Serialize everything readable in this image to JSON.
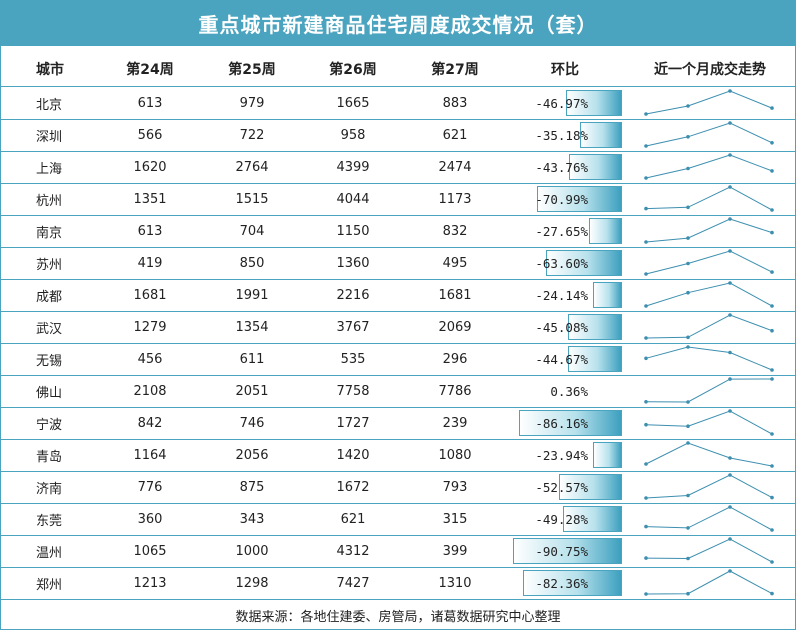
{
  "title": "重点城市新建商品住宅周度成交情况（套）",
  "footer": "数据来源：各地住建委、房管局，诸葛数据研究中心整理",
  "colors": {
    "accent": "#4aa3bf",
    "line": "#3d8fb0"
  },
  "chart_data": {
    "type": "table",
    "columns": [
      "城市",
      "第24周",
      "第25周",
      "第26周",
      "第27周",
      "环比",
      "近一个月成交走势"
    ],
    "rows": [
      {
        "city": "北京",
        "values": [
          613,
          979,
          1665,
          883
        ],
        "change": "-46.97%",
        "change_value": -46.97
      },
      {
        "city": "深圳",
        "values": [
          566,
          722,
          958,
          621
        ],
        "change": "-35.18%",
        "change_value": -35.18
      },
      {
        "city": "上海",
        "values": [
          1620,
          2764,
          4399,
          2474
        ],
        "change": "-43.76%",
        "change_value": -43.76
      },
      {
        "city": "杭州",
        "values": [
          1351,
          1515,
          4044,
          1173
        ],
        "change": "-70.99%",
        "change_value": -70.99
      },
      {
        "city": "南京",
        "values": [
          613,
          704,
          1150,
          832
        ],
        "change": "-27.65%",
        "change_value": -27.65
      },
      {
        "city": "苏州",
        "values": [
          419,
          850,
          1360,
          495
        ],
        "change": "-63.60%",
        "change_value": -63.6
      },
      {
        "city": "成都",
        "values": [
          1681,
          1991,
          2216,
          1681
        ],
        "change": "-24.14%",
        "change_value": -24.14
      },
      {
        "city": "武汉",
        "values": [
          1279,
          1354,
          3767,
          2069
        ],
        "change": "-45.08%",
        "change_value": -45.08
      },
      {
        "city": "无锡",
        "values": [
          456,
          611,
          535,
          296
        ],
        "change": "-44.67%",
        "change_value": -44.67
      },
      {
        "city": "佛山",
        "values": [
          2108,
          2051,
          7758,
          7786
        ],
        "change": "0.36%",
        "change_value": 0.36
      },
      {
        "city": "宁波",
        "values": [
          842,
          746,
          1727,
          239
        ],
        "change": "-86.16%",
        "change_value": -86.16
      },
      {
        "city": "青岛",
        "values": [
          1164,
          2056,
          1420,
          1080
        ],
        "change": "-23.94%",
        "change_value": -23.94
      },
      {
        "city": "济南",
        "values": [
          776,
          875,
          1672,
          793
        ],
        "change": "-52.57%",
        "change_value": -52.57
      },
      {
        "city": "东莞",
        "values": [
          360,
          343,
          621,
          315
        ],
        "change": "-49.28%",
        "change_value": -49.28
      },
      {
        "city": "温州",
        "values": [
          1065,
          1000,
          4312,
          399
        ],
        "change": "-90.75%",
        "change_value": -90.75
      },
      {
        "city": "郑州",
        "values": [
          1213,
          1298,
          7427,
          1310
        ],
        "change": "-82.36%",
        "change_value": -82.36
      }
    ]
  }
}
